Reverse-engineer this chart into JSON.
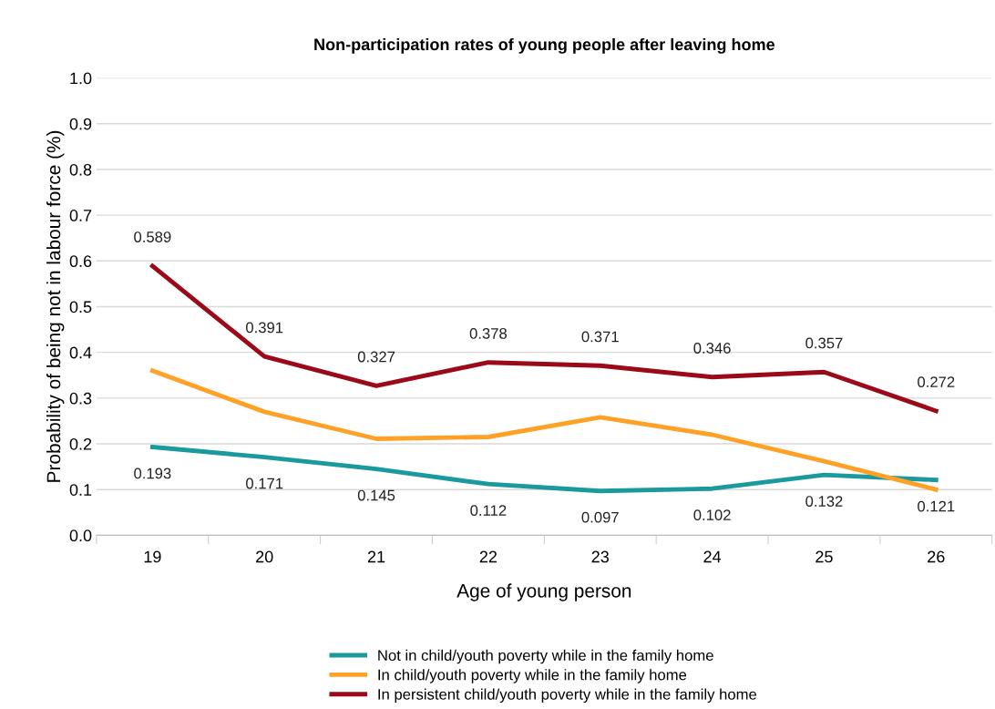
{
  "chart_data": {
    "type": "line",
    "title": "Non-participation rates of young people after leaving home",
    "xlabel": "Age of young person",
    "ylabel": "Probability of being not in labour force (%)",
    "categories": [
      "19",
      "20",
      "21",
      "22",
      "23",
      "24",
      "25",
      "26"
    ],
    "ylim": [
      0,
      1
    ],
    "yticks": [
      {
        "value": 0,
        "label": "0.0"
      },
      {
        "value": 0.1,
        "label": "0.1"
      },
      {
        "value": 0.2,
        "label": "0.2"
      },
      {
        "value": 0.3,
        "label": "0.3"
      },
      {
        "value": 0.4,
        "label": "0.4"
      },
      {
        "value": 0.5,
        "label": "0.5"
      },
      {
        "value": 0.6,
        "label": "0.6"
      },
      {
        "value": 0.7,
        "label": "0.7"
      },
      {
        "value": 0.8,
        "label": "0.8"
      },
      {
        "value": 0.9,
        "label": "0.9"
      },
      {
        "value": 1,
        "label": "1.0"
      }
    ],
    "grid": "y",
    "legend": "bottom",
    "marker": "none",
    "line_style": "solid",
    "series": [
      {
        "name": "Not in child/youth poverty while in the family home",
        "color": "#1b9a9e",
        "values": [
          0.193,
          0.171,
          0.145,
          0.112,
          0.097,
          0.102,
          0.132,
          0.121
        ],
        "value_labels": [
          "0.193",
          "0.171",
          "0.145",
          "0.112",
          "0.097",
          "0.102",
          "0.132",
          "0.121"
        ]
      },
      {
        "name": "In child/youth poverty while in the family home",
        "color": "#ffa126",
        "values": [
          0.36,
          0.27,
          0.211,
          0.215,
          0.258,
          0.22,
          0.162,
          0.1
        ]
      },
      {
        "name": "In persistent child/youth poverty while in the family home",
        "color": "#9a0a18",
        "values": [
          0.589,
          0.391,
          0.327,
          0.378,
          0.371,
          0.346,
          0.357,
          0.272
        ],
        "value_labels": [
          "0.589",
          "0.391",
          "0.327",
          "0.378",
          "0.371",
          "0.346",
          "0.357",
          "0.272"
        ]
      }
    ]
  }
}
